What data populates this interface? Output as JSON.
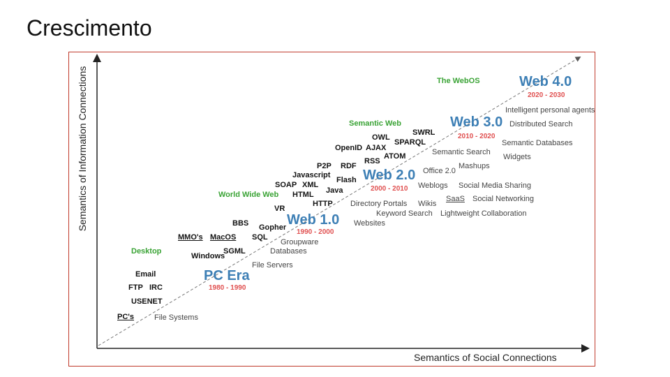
{
  "slide": {
    "title": "Crescimento"
  },
  "axes": {
    "y_label": "Semantics of Information Connections",
    "x_label": "Semantics of Social Connections"
  },
  "eras": [
    {
      "name": "PC Era",
      "years": "1980 - 1990"
    },
    {
      "name": "Web 1.0",
      "years": "1990 - 2000"
    },
    {
      "name": "Web 2.0",
      "years": "2000 - 2010"
    },
    {
      "name": "Web 3.0",
      "years": "2010 - 2020"
    },
    {
      "name": "Web 4.0",
      "years": "2020 - 2030"
    }
  ],
  "milestones": {
    "desktop": "Desktop",
    "world_wide_web": "World Wide Web",
    "semantic_web": "Semantic Web",
    "webos": "The WebOS"
  },
  "technologies": {
    "pcs": "PC's",
    "usenet": "USENET",
    "ftp": "FTP",
    "irc": "IRC",
    "email": "Email",
    "windows": "Windows",
    "mmos": "MMO's",
    "macos": "MacOS",
    "sgml": "SGML",
    "sql": "SQL",
    "gopher": "Gopher",
    "bbs": "BBS",
    "vr": "VR",
    "http": "HTTP",
    "html": "HTML",
    "java": "Java",
    "soap": "SOAP",
    "xml": "XML",
    "javascript": "Javascript",
    "flash": "Flash",
    "p2p": "P2P",
    "rdf": "RDF",
    "rss": "RSS",
    "openid": "OpenID",
    "ajax": "AJAX",
    "atom": "ATOM",
    "owl": "OWL",
    "sparql": "SPARQL",
    "swrl": "SWRL"
  },
  "applications": {
    "file_systems": "File Systems",
    "file_servers": "File Servers",
    "databases": "Databases",
    "groupware": "Groupware",
    "websites": "Websites",
    "keyword_search": "Keyword Search",
    "directory_portals": "Directory Portals",
    "wikis": "Wikis",
    "weblogs": "Weblogs",
    "office20": "Office 2.0",
    "saas": "SaaS",
    "lightweight_collab": "Lightweight Collaboration",
    "social_networking": "Social Networking",
    "social_media_sharing": "Social Media Sharing",
    "mashups": "Mashups",
    "semantic_search": "Semantic Search",
    "widgets": "Widgets",
    "semantic_databases": "Semantic Databases",
    "distributed_search": "Distributed Search",
    "intelligent_agents": "Intelligent personal agents"
  },
  "colors": {
    "era": "#3d7fb5",
    "years": "#e05050",
    "milestone": "#3aa335",
    "border": "#c0392b"
  }
}
